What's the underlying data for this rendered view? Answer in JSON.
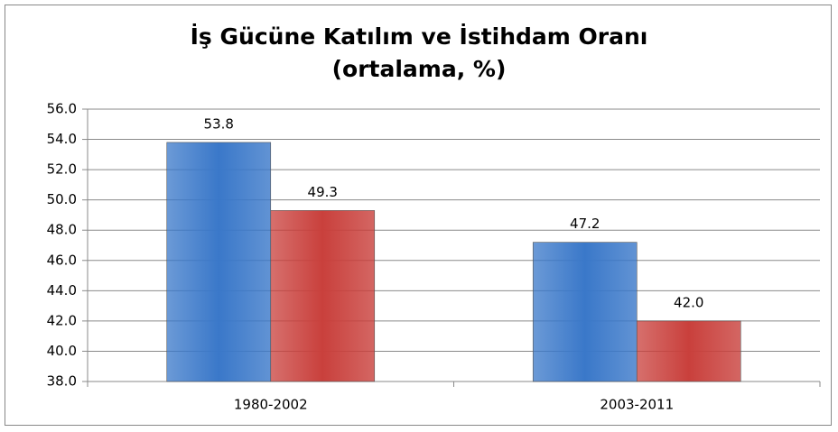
{
  "chart_data": {
    "type": "bar",
    "title": "İş Gücüne Katılım ve İstihdam Oranı",
    "subtitle": "(ortalama, %)",
    "categories": [
      "1980-2002",
      "2003-2011"
    ],
    "series": [
      {
        "color": "#3a78c9",
        "values": [
          53.8,
          47.2
        ],
        "value_labels": [
          "53.8",
          "47.2"
        ]
      },
      {
        "color": "#c9403c",
        "values": [
          49.3,
          42.0
        ],
        "value_labels": [
          "49.3",
          "42.0"
        ]
      }
    ],
    "ylim": [
      38,
      56
    ],
    "yticks": [
      {
        "value": 38,
        "label": "38.0"
      },
      {
        "value": 40,
        "label": "40.0"
      },
      {
        "value": 42,
        "label": "42.0"
      },
      {
        "value": 44,
        "label": "44.0"
      },
      {
        "value": 46,
        "label": "46.0"
      },
      {
        "value": 48,
        "label": "48.0"
      },
      {
        "value": 50,
        "label": "50.0"
      },
      {
        "value": 52,
        "label": "52.0"
      },
      {
        "value": 54,
        "label": "54.0"
      },
      {
        "value": 56,
        "label": "56.0"
      }
    ],
    "grid": true
  }
}
